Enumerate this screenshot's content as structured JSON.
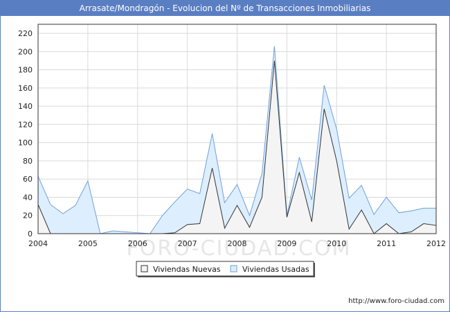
{
  "title": "Arrasate/Mondragón - Evolucion del Nº de Transacciones Inmobiliarias",
  "source_url": "http://www.foro-ciudad.com",
  "watermark": "FORO-CIUDAD.COM",
  "colors": {
    "title_bg": "#5a7ec2",
    "usadas_fill": "#ddeeff",
    "usadas_line": "#6f9fd8",
    "nuevas_fill": "#f4f4f4",
    "nuevas_line": "#333333",
    "grid": "#d9d9d9"
  },
  "chart_data": {
    "type": "area",
    "x_ticks": [
      "2004",
      "2005",
      "2006",
      "2007",
      "2008",
      "2009",
      "2010",
      "2011",
      "2012"
    ],
    "y_ticks": [
      0,
      20,
      40,
      60,
      80,
      100,
      120,
      140,
      160,
      180,
      200,
      220
    ],
    "ylim": [
      0,
      230
    ],
    "xlim": [
      2004,
      2012
    ],
    "grid": true,
    "legend_position": "bottom-center",
    "x": [
      2004.0,
      2004.25,
      2004.5,
      2004.75,
      2005.0,
      2005.25,
      2005.5,
      2005.75,
      2006.0,
      2006.25,
      2006.5,
      2006.75,
      2007.0,
      2007.25,
      2007.5,
      2007.75,
      2008.0,
      2008.25,
      2008.5,
      2008.75,
      2009.0,
      2009.25,
      2009.5,
      2009.75,
      2010.0,
      2010.25,
      2010.5,
      2010.75,
      2011.0,
      2011.25,
      2011.5,
      2011.75,
      2012.0
    ],
    "series": [
      {
        "name": "Viviendas Nuevas",
        "values": [
          32,
          0,
          0,
          0,
          0,
          0,
          0,
          0,
          0,
          0,
          0,
          1,
          10,
          11,
          72,
          6,
          31,
          7,
          40,
          190,
          18,
          67,
          13,
          137,
          80,
          5,
          26,
          0,
          11,
          0,
          2,
          11,
          9
        ]
      },
      {
        "name": "Viviendas Usadas",
        "values": [
          63,
          32,
          22,
          31,
          58,
          0,
          3,
          2,
          1,
          0,
          20,
          35,
          49,
          44,
          110,
          34,
          54,
          20,
          66,
          206,
          20,
          84,
          37,
          163,
          115,
          39,
          53,
          21,
          40,
          23,
          25,
          28,
          28
        ]
      }
    ]
  }
}
